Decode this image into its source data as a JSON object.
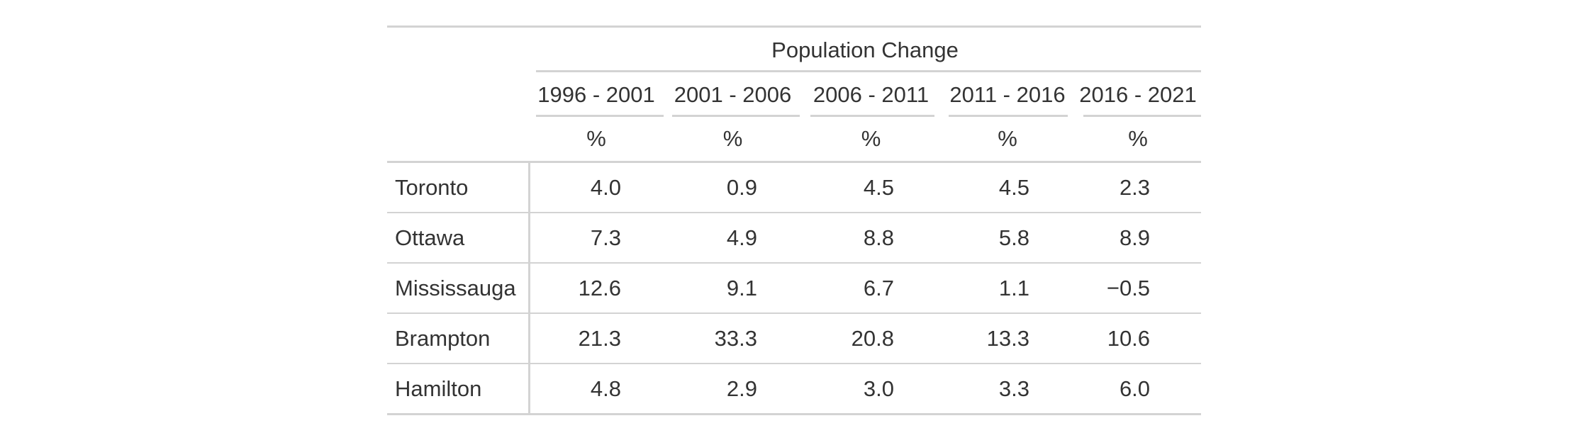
{
  "table": {
    "spanner": "Population Change",
    "periods": [
      "1996 - 2001",
      "2001 - 2006",
      "2006 - 2011",
      "2011 - 2016",
      "2016 - 2021"
    ],
    "unit": "%",
    "rows": [
      {
        "city": "Toronto",
        "values": [
          "4.0",
          "0.9",
          "4.5",
          "4.5",
          "2.3"
        ]
      },
      {
        "city": "Ottawa",
        "values": [
          "7.3",
          "4.9",
          "8.8",
          "5.8",
          "8.9"
        ]
      },
      {
        "city": "Mississauga",
        "values": [
          "12.6",
          "9.1",
          "6.7",
          "1.1",
          "−0.5"
        ]
      },
      {
        "city": "Brampton",
        "values": [
          "21.3",
          "33.3",
          "20.8",
          "13.3",
          "10.6"
        ]
      },
      {
        "city": "Hamilton",
        "values": [
          "4.8",
          "2.9",
          "3.0",
          "3.3",
          "6.0"
        ]
      }
    ]
  }
}
